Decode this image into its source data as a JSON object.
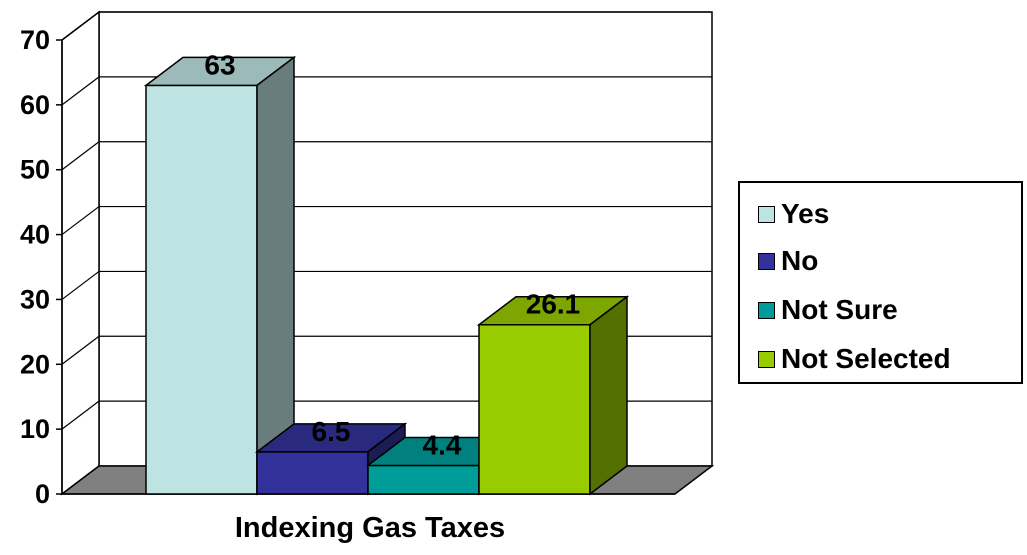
{
  "chart_data": {
    "type": "bar",
    "xlabel": "Indexing Gas Taxes",
    "ylim": [
      0,
      70
    ],
    "yticks": [
      0,
      10,
      20,
      30,
      40,
      50,
      60,
      70
    ],
    "grid": true,
    "three_d": true,
    "legend_position": "right",
    "series": [
      {
        "name": "Yes",
        "values": [
          63
        ],
        "label": "63",
        "color": "#BEE3E3"
      },
      {
        "name": "No",
        "values": [
          6.5
        ],
        "label": "6.5",
        "color": "#32329A"
      },
      {
        "name": "Not Sure",
        "values": [
          4.4
        ],
        "label": "4.4",
        "color": "#009C9A"
      },
      {
        "name": "Not Selected",
        "values": [
          26.1
        ],
        "label": "26.1",
        "color": "#99CC00"
      }
    ],
    "colors": {
      "floor": "#808080",
      "wall": "#ffffff",
      "grid": "#000000"
    }
  }
}
